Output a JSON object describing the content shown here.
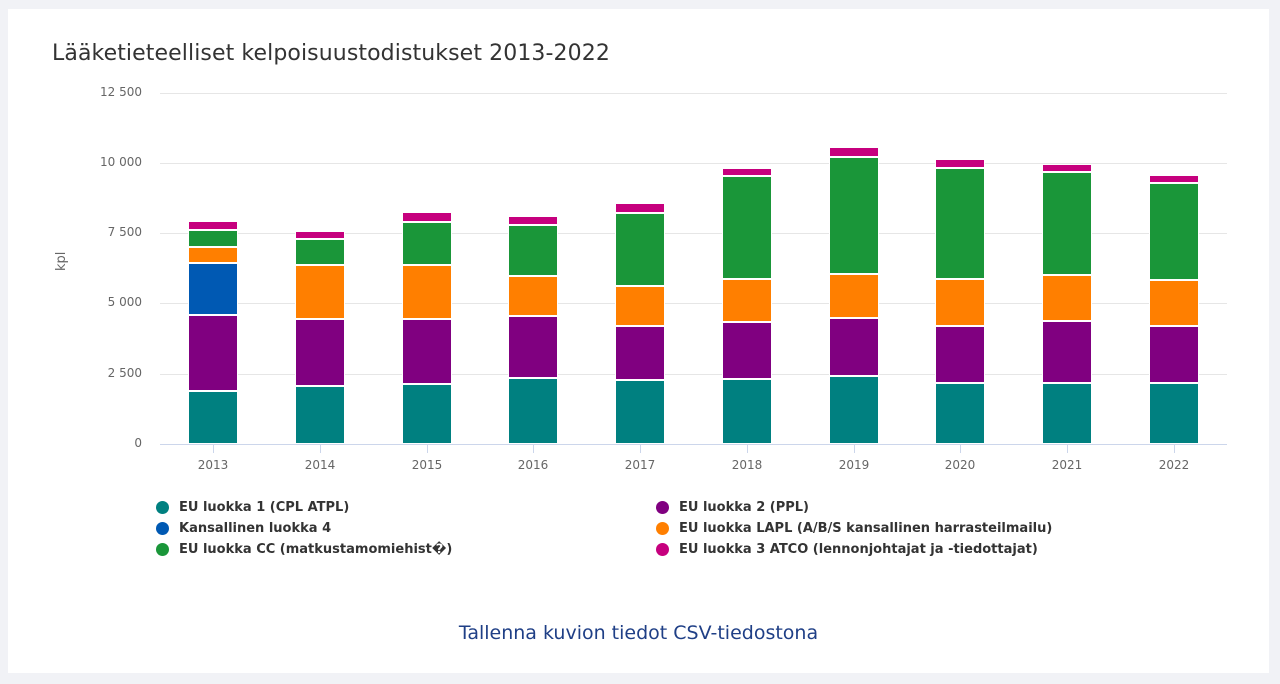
{
  "chart_data": {
    "type": "bar",
    "stacked": true,
    "title": "Lääketieteelliset kelpoisuustodistukset 2013-2022",
    "xlabel": "",
    "ylabel": "kpl",
    "ylim": [
      0,
      12500
    ],
    "yticks": [
      "0",
      "2 500",
      "5 000",
      "7 500",
      "10 000",
      "12 500"
    ],
    "ytick_values": [
      0,
      2500,
      5000,
      7500,
      10000,
      12500
    ],
    "grid": true,
    "legend_position": "bottom",
    "categories": [
      "2013",
      "2014",
      "2015",
      "2016",
      "2017",
      "2018",
      "2019",
      "2020",
      "2021",
      "2022"
    ],
    "series": [
      {
        "name": "EU luokka 1 (CPL ATPL)",
        "color": "#008080",
        "values": [
          1880,
          2080,
          2130,
          2330,
          2260,
          2310,
          2415,
          2165,
          2165,
          2165
        ]
      },
      {
        "name": "EU luokka 2 (PPL)",
        "color": "#800080",
        "values": [
          2700,
          2350,
          2320,
          2220,
          1930,
          2020,
          2070,
          2020,
          2215,
          2020
        ]
      },
      {
        "name": "Kansallinen luokka 4",
        "color": "#0059b3",
        "values": [
          1840,
          0,
          0,
          0,
          0,
          0,
          0,
          0,
          0,
          0
        ]
      },
      {
        "name": "EU luokka LAPL (A/B/S kansallinen harrasteilmailu)",
        "color": "#ff7f00",
        "values": [
          600,
          1940,
          1930,
          1420,
          1430,
          1540,
          1550,
          1680,
          1635,
          1650
        ]
      },
      {
        "name": "EU luokka CC (matkustamomiehist�)",
        "color": "#1a9639",
        "values": [
          600,
          920,
          1530,
          1835,
          2610,
          3660,
          4180,
          3950,
          3660,
          3445
        ]
      },
      {
        "name": "EU luokka 3 ATCO (lennonjohtajat ja -tiedottajat)",
        "color": "#c6007e",
        "values": [
          300,
          300,
          330,
          320,
          330,
          285,
          330,
          330,
          285,
          285
        ]
      }
    ]
  },
  "legend": {
    "left": [
      {
        "label": "EU luokka 1 (CPL ATPL)",
        "color": "#008080"
      },
      {
        "label": "Kansallinen luokka 4",
        "color": "#0059b3"
      },
      {
        "label": "EU luokka CC (matkustamomiehist�)",
        "color": "#1a9639"
      }
    ],
    "right": [
      {
        "label": "EU luokka 2 (PPL)",
        "color": "#800080"
      },
      {
        "label": "EU luokka LAPL (A/B/S kansallinen harrasteilmailu)",
        "color": "#ff7f00"
      },
      {
        "label": "EU luokka 3 ATCO (lennonjohtajat ja -tiedottajat)",
        "color": "#c6007e"
      }
    ]
  },
  "footer": {
    "csv_link": "Tallenna kuvion tiedot CSV-tiedostona"
  }
}
